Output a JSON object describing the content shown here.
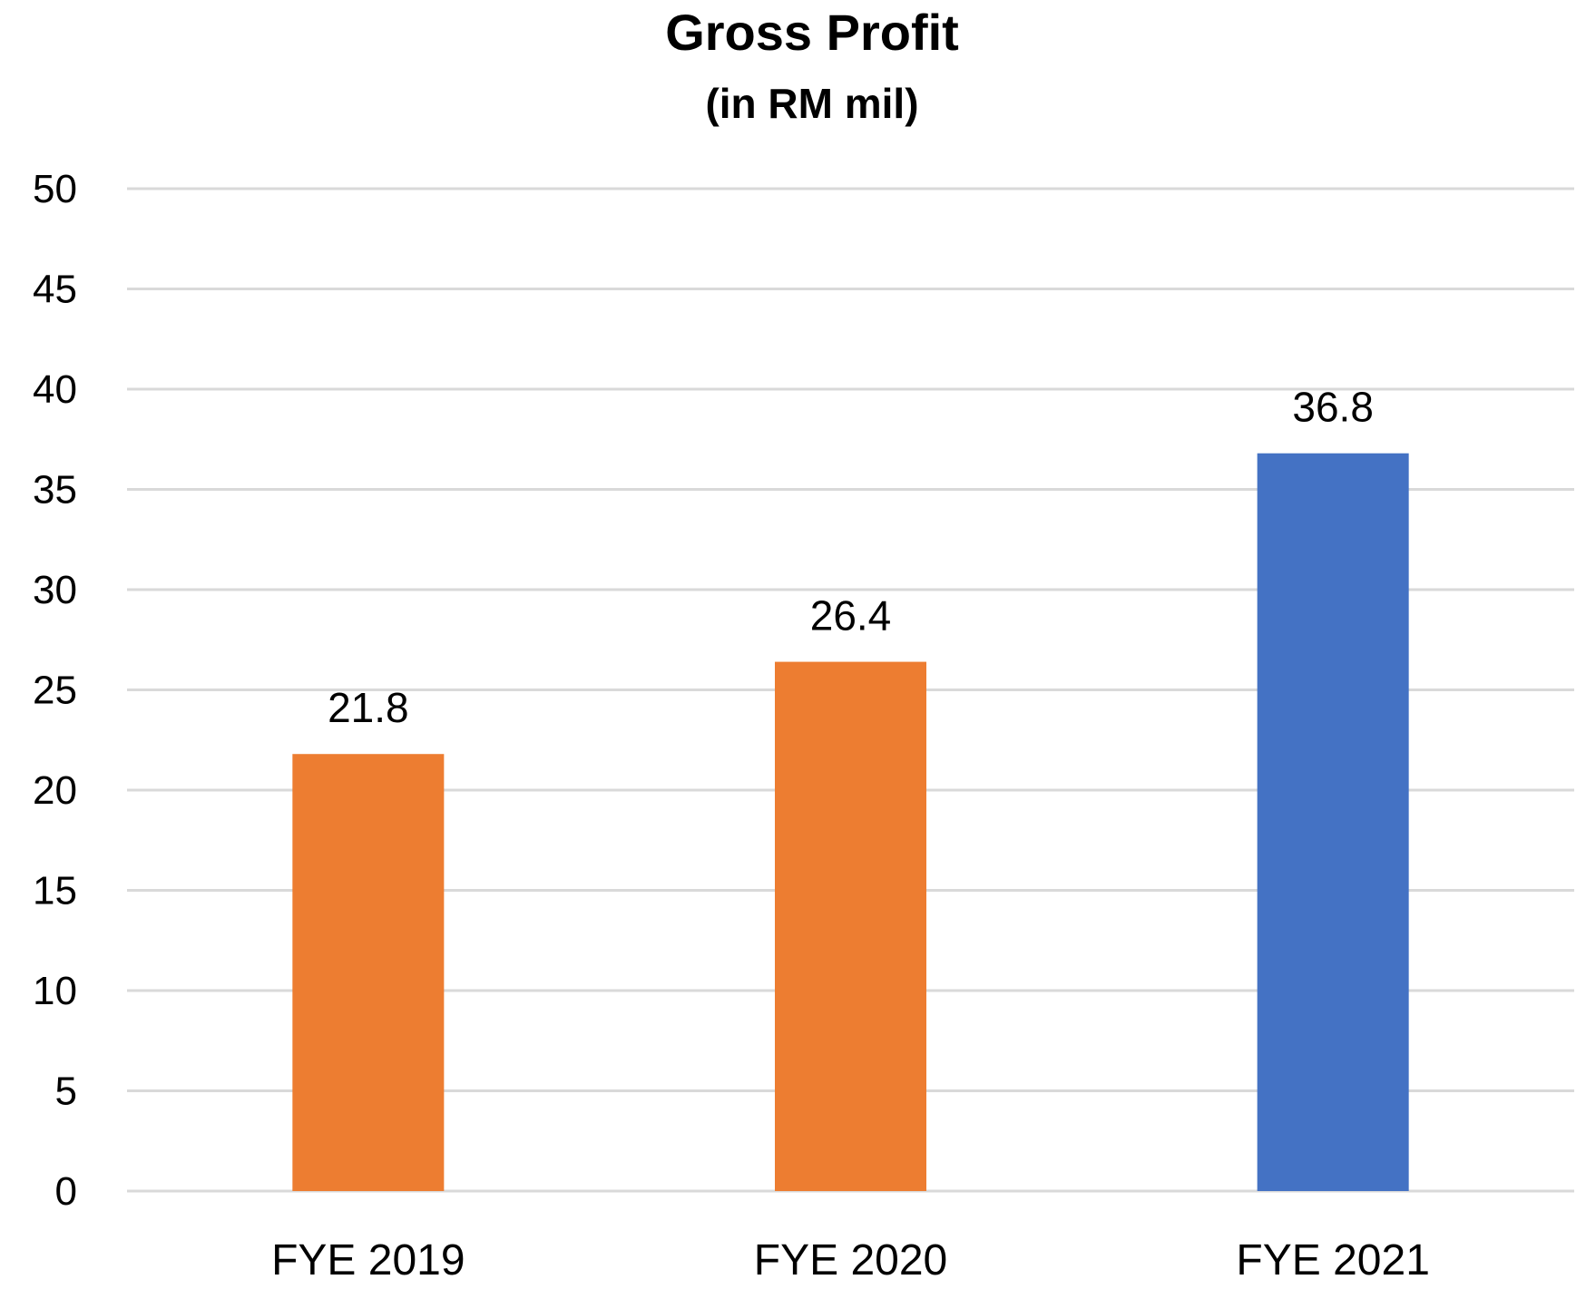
{
  "chart_data": {
    "type": "bar",
    "title": "Gross Profit",
    "subtitle": "(in RM mil)",
    "categories": [
      "FYE 2019",
      "FYE 2020",
      "FYE 2021"
    ],
    "values": [
      21.8,
      26.4,
      36.8
    ],
    "data_labels": [
      "21.8",
      "26.4",
      "36.8"
    ],
    "bar_colors": [
      "#ED7D31",
      "#ED7D31",
      "#4472C4"
    ],
    "ylim": [
      0,
      50
    ],
    "yticks": [
      0,
      5,
      10,
      15,
      20,
      25,
      30,
      35,
      40,
      45,
      50
    ],
    "grid": true,
    "gridline_color": "#D9D9D9",
    "legend": "none"
  }
}
